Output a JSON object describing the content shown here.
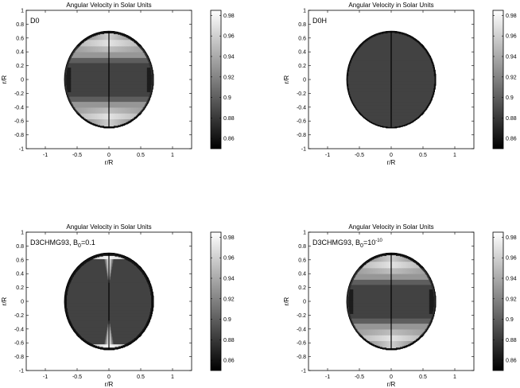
{
  "chart_data": [
    {
      "type": "heatmap",
      "title": "Angular Velocity in Solar Units",
      "label_main": "D0",
      "label_sub": "",
      "label_sup": "",
      "label_tail": "",
      "xlabel": "r/R",
      "ylabel": "r/R",
      "xlim": [
        -1.3,
        1.3
      ],
      "ylim": [
        -1,
        1
      ],
      "xticks": [
        -1,
        -0.5,
        0,
        0.5,
        1
      ],
      "xtick_labels": [
        "-1",
        "-0.5",
        "0",
        "0.5",
        "1"
      ],
      "yticks": [
        -1,
        -0.8,
        -0.6,
        -0.4,
        -0.2,
        0,
        0.2,
        0.4,
        0.6,
        0.8,
        1
      ],
      "ytick_labels": [
        "-1",
        "-0.8",
        "-0.6",
        "-0.4",
        "-0.2",
        "0",
        "0.2",
        "0.4",
        "0.6",
        "0.8",
        "1"
      ],
      "disk_radius": 0.7,
      "colorbar": {
        "range": [
          0.85,
          0.985
        ],
        "ticks": [
          0.86,
          0.88,
          0.9,
          0.92,
          0.94,
          0.96,
          0.98
        ],
        "tick_labels": [
          "0.86",
          "0.88",
          "0.9",
          "0.92",
          "0.94",
          "0.96",
          "0.98"
        ]
      },
      "pattern": "standard"
    },
    {
      "type": "heatmap",
      "title": "Angular Velocity in Solar Units",
      "label_main": "D0H",
      "label_sub": "",
      "label_sup": "",
      "label_tail": "",
      "xlabel": "r/R",
      "ylabel": "r/R",
      "xlim": [
        -1.3,
        1.3
      ],
      "ylim": [
        -1,
        1
      ],
      "xticks": [
        -1,
        -0.5,
        0,
        0.5,
        1
      ],
      "xtick_labels": [
        "-1",
        "-0.5",
        "0",
        "0.5",
        "1"
      ],
      "yticks": [
        -1,
        -0.8,
        -0.6,
        -0.4,
        -0.2,
        0,
        0.2,
        0.4,
        0.6,
        0.8,
        1
      ],
      "ytick_labels": [
        "-1",
        "-0.8",
        "-0.6",
        "-0.4",
        "-0.2",
        "0",
        "0.2",
        "0.4",
        "0.6",
        "0.8",
        "1"
      ],
      "disk_radius": 0.7,
      "colorbar": {
        "range": [
          0.85,
          0.985
        ],
        "ticks": [
          0.86,
          0.88,
          0.9,
          0.92,
          0.94,
          0.96,
          0.98
        ],
        "tick_labels": [
          "0.86",
          "0.88",
          "0.9",
          "0.92",
          "0.94",
          "0.96",
          "0.98"
        ]
      },
      "pattern": "uniform"
    },
    {
      "type": "heatmap",
      "title": "Angular Velocity in Solar Units",
      "label_main": "D3CHMG93, B",
      "label_sub": "0",
      "label_sup": "",
      "label_tail": "=0.1",
      "xlabel": "r/R",
      "ylabel": "r/R",
      "xlim": [
        -1.3,
        1.3
      ],
      "ylim": [
        -1,
        1
      ],
      "xticks": [
        -1,
        -0.5,
        0,
        0.5,
        1
      ],
      "xtick_labels": [
        "-1",
        "-0.5",
        "0",
        "0.5",
        "1"
      ],
      "yticks": [
        -1,
        -0.8,
        -0.6,
        -0.4,
        -0.2,
        0,
        0.2,
        0.4,
        0.6,
        0.8,
        1
      ],
      "ytick_labels": [
        "-1",
        "-0.8",
        "-0.6",
        "-0.4",
        "-0.2",
        "0",
        "0.2",
        "0.4",
        "0.6",
        "0.8",
        "1"
      ],
      "disk_radius": 0.7,
      "colorbar": {
        "range": [
          0.85,
          0.985
        ],
        "ticks": [
          0.86,
          0.88,
          0.9,
          0.92,
          0.94,
          0.96,
          0.98
        ],
        "tick_labels": [
          "0.86",
          "0.88",
          "0.9",
          "0.92",
          "0.94",
          "0.96",
          "0.98"
        ]
      },
      "pattern": "polar"
    },
    {
      "type": "heatmap",
      "title": "Angular Velocity in Solar Units",
      "label_main": "D3CHMG93, B",
      "label_sub": "0",
      "label_sup": "-10",
      "label_tail": "=10",
      "xlabel": "r/R",
      "ylabel": "r/R",
      "xlim": [
        -1.3,
        1.3
      ],
      "ylim": [
        -1,
        1
      ],
      "xticks": [
        -1,
        -0.5,
        0,
        0.5,
        1
      ],
      "xtick_labels": [
        "-1",
        "-0.5",
        "0",
        "0.5",
        "1"
      ],
      "yticks": [
        -1,
        -0.8,
        -0.6,
        -0.4,
        -0.2,
        0,
        0.2,
        0.4,
        0.6,
        0.8,
        1
      ],
      "ytick_labels": [
        "-1",
        "-0.8",
        "-0.6",
        "-0.4",
        "-0.2",
        "0",
        "0.2",
        "0.4",
        "0.6",
        "0.8",
        "1"
      ],
      "disk_radius": 0.7,
      "colorbar": {
        "range": [
          0.85,
          0.985
        ],
        "ticks": [
          0.86,
          0.88,
          0.9,
          0.92,
          0.94,
          0.96,
          0.98
        ],
        "tick_labels": [
          "0.86",
          "0.88",
          "0.9",
          "0.92",
          "0.94",
          "0.96",
          "0.98"
        ]
      },
      "pattern": "standard"
    }
  ]
}
